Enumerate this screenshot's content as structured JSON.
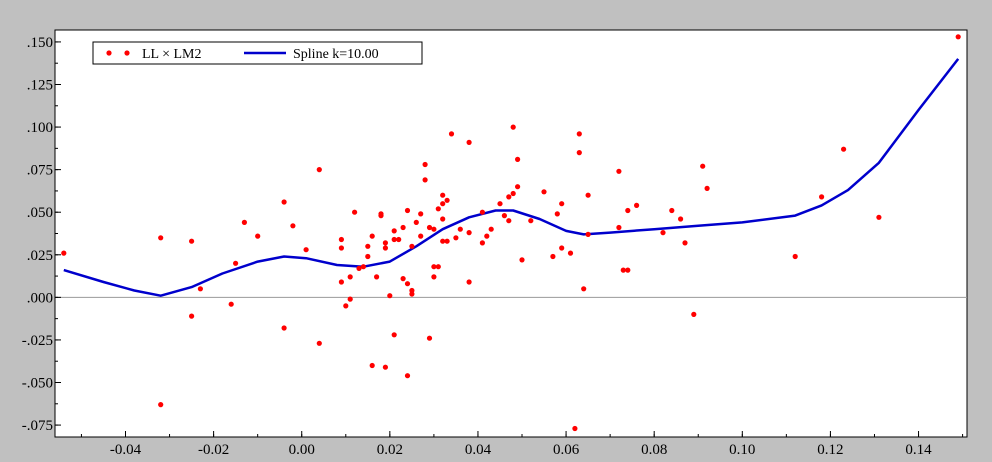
{
  "chart_data": {
    "type": "scatter",
    "title": "",
    "xlabel": "",
    "ylabel": "",
    "xlim": [
      -0.056,
      0.151
    ],
    "ylim": [
      -0.082,
      0.157
    ],
    "grid": false,
    "legend_placement": "top-left",
    "x_tick_labels": [
      "-0.04",
      "-0.02",
      "0.00",
      "0.02",
      "0.04",
      "0.06",
      "0.08",
      "0.10",
      "0.12",
      "0.14"
    ],
    "x_ticks": [
      -0.04,
      -0.02,
      0.0,
      0.02,
      0.04,
      0.06,
      0.08,
      0.1,
      0.12,
      0.14
    ],
    "y_tick_labels": [
      ".150",
      ".125",
      ".100",
      ".075",
      ".050",
      ".025",
      ".000",
      "-.025",
      "-.050",
      "-.075"
    ],
    "y_ticks": [
      0.15,
      0.125,
      0.1,
      0.075,
      0.05,
      0.025,
      0.0,
      -0.025,
      -0.05,
      -0.075
    ],
    "series": [
      {
        "name": "LL × LM2",
        "type": "scatter",
        "color": "#ff0000",
        "points": [
          [
            -0.054,
            0.026
          ],
          [
            -0.032,
            0.035
          ],
          [
            -0.032,
            -0.063
          ],
          [
            -0.025,
            0.033
          ],
          [
            -0.025,
            -0.011
          ],
          [
            -0.023,
            0.005
          ],
          [
            -0.016,
            -0.004
          ],
          [
            -0.015,
            0.02
          ],
          [
            -0.013,
            0.044
          ],
          [
            -0.01,
            0.036
          ],
          [
            -0.004,
            0.056
          ],
          [
            -0.004,
            -0.018
          ],
          [
            -0.002,
            0.042
          ],
          [
            0.001,
            0.028
          ],
          [
            0.004,
            0.075
          ],
          [
            0.004,
            -0.027
          ],
          [
            0.009,
            0.034
          ],
          [
            0.009,
            0.029
          ],
          [
            0.009,
            0.009
          ],
          [
            0.01,
            -0.005
          ],
          [
            0.011,
            -0.001
          ],
          [
            0.011,
            0.012
          ],
          [
            0.012,
            0.05
          ],
          [
            0.013,
            0.017
          ],
          [
            0.014,
            0.018
          ],
          [
            0.015,
            0.03
          ],
          [
            0.015,
            0.024
          ],
          [
            0.016,
            0.036
          ],
          [
            0.016,
            -0.04
          ],
          [
            0.017,
            0.012
          ],
          [
            0.018,
            0.049
          ],
          [
            0.018,
            0.048
          ],
          [
            0.019,
            0.029
          ],
          [
            0.019,
            0.032
          ],
          [
            0.019,
            -0.041
          ],
          [
            0.02,
            0.001
          ],
          [
            0.021,
            0.034
          ],
          [
            0.021,
            0.039
          ],
          [
            0.021,
            -0.022
          ],
          [
            0.022,
            0.034
          ],
          [
            0.023,
            0.011
          ],
          [
            0.023,
            0.041
          ],
          [
            0.024,
            0.051
          ],
          [
            0.024,
            0.008
          ],
          [
            0.024,
            -0.046
          ],
          [
            0.025,
            0.03
          ],
          [
            0.025,
            0.004
          ],
          [
            0.025,
            0.002
          ],
          [
            0.026,
            0.044
          ],
          [
            0.027,
            0.036
          ],
          [
            0.027,
            0.049
          ],
          [
            0.028,
            0.069
          ],
          [
            0.028,
            0.078
          ],
          [
            0.029,
            0.041
          ],
          [
            0.029,
            -0.024
          ],
          [
            0.03,
            0.04
          ],
          [
            0.03,
            0.012
          ],
          [
            0.03,
            0.018
          ],
          [
            0.031,
            0.018
          ],
          [
            0.031,
            0.052
          ],
          [
            0.032,
            0.06
          ],
          [
            0.032,
            0.055
          ],
          [
            0.032,
            0.046
          ],
          [
            0.032,
            0.033
          ],
          [
            0.033,
            0.033
          ],
          [
            0.033,
            0.057
          ],
          [
            0.034,
            0.096
          ],
          [
            0.035,
            0.035
          ],
          [
            0.036,
            0.04
          ],
          [
            0.038,
            0.091
          ],
          [
            0.038,
            0.038
          ],
          [
            0.038,
            0.009
          ],
          [
            0.041,
            0.05
          ],
          [
            0.041,
            0.032
          ],
          [
            0.042,
            0.036
          ],
          [
            0.043,
            0.04
          ],
          [
            0.045,
            0.055
          ],
          [
            0.046,
            0.048
          ],
          [
            0.047,
            0.059
          ],
          [
            0.047,
            0.045
          ],
          [
            0.048,
            0.1
          ],
          [
            0.048,
            0.061
          ],
          [
            0.049,
            0.065
          ],
          [
            0.049,
            0.081
          ],
          [
            0.05,
            0.022
          ],
          [
            0.052,
            0.045
          ],
          [
            0.055,
            0.062
          ],
          [
            0.057,
            0.024
          ],
          [
            0.058,
            0.049
          ],
          [
            0.059,
            0.029
          ],
          [
            0.059,
            0.055
          ],
          [
            0.061,
            0.026
          ],
          [
            0.062,
            -0.077
          ],
          [
            0.063,
            0.096
          ],
          [
            0.063,
            0.085
          ],
          [
            0.064,
            0.005
          ],
          [
            0.065,
            0.037
          ],
          [
            0.065,
            0.06
          ],
          [
            0.072,
            0.074
          ],
          [
            0.072,
            0.041
          ],
          [
            0.073,
            0.016
          ],
          [
            0.074,
            0.016
          ],
          [
            0.074,
            0.051
          ],
          [
            0.076,
            0.054
          ],
          [
            0.082,
            0.038
          ],
          [
            0.084,
            0.051
          ],
          [
            0.086,
            0.046
          ],
          [
            0.087,
            0.032
          ],
          [
            0.089,
            -0.01
          ],
          [
            0.091,
            0.077
          ],
          [
            0.092,
            0.064
          ],
          [
            0.112,
            0.024
          ],
          [
            0.118,
            0.059
          ],
          [
            0.123,
            0.087
          ],
          [
            0.131,
            0.047
          ],
          [
            0.149,
            0.153
          ]
        ]
      },
      {
        "name": "Spline k=10.00",
        "type": "line",
        "color": "#0000cc",
        "points": [
          [
            -0.054,
            0.016
          ],
          [
            -0.045,
            0.009
          ],
          [
            -0.038,
            0.004
          ],
          [
            -0.032,
            0.001
          ],
          [
            -0.025,
            0.006
          ],
          [
            -0.018,
            0.014
          ],
          [
            -0.01,
            0.021
          ],
          [
            -0.004,
            0.024
          ],
          [
            0.001,
            0.023
          ],
          [
            0.008,
            0.019
          ],
          [
            0.014,
            0.018
          ],
          [
            0.02,
            0.021
          ],
          [
            0.026,
            0.03
          ],
          [
            0.032,
            0.04
          ],
          [
            0.038,
            0.047
          ],
          [
            0.044,
            0.051
          ],
          [
            0.048,
            0.051
          ],
          [
            0.054,
            0.046
          ],
          [
            0.06,
            0.039
          ],
          [
            0.064,
            0.037
          ],
          [
            0.07,
            0.038
          ],
          [
            0.08,
            0.04
          ],
          [
            0.09,
            0.042
          ],
          [
            0.1,
            0.044
          ],
          [
            0.112,
            0.048
          ],
          [
            0.118,
            0.054
          ],
          [
            0.124,
            0.063
          ],
          [
            0.131,
            0.079
          ],
          [
            0.14,
            0.11
          ],
          [
            0.149,
            0.14
          ]
        ]
      }
    ]
  }
}
